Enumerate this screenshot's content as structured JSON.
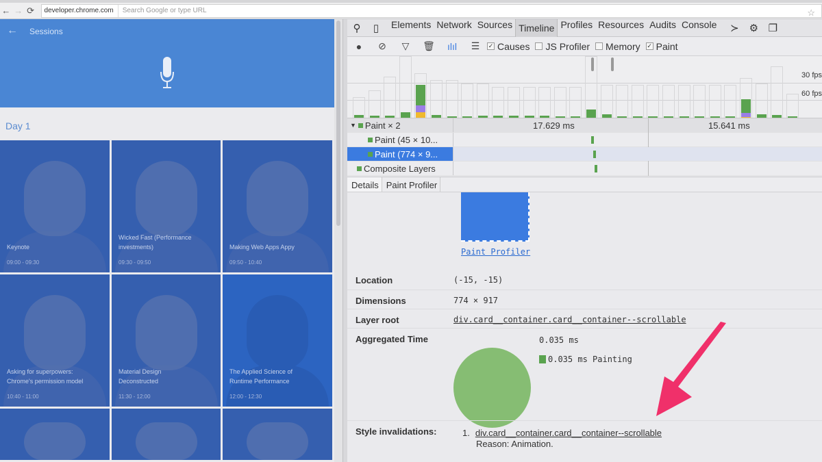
{
  "browser": {
    "host": "developer.chrome.com",
    "omnibox_placeholder": "Search Google or type URL"
  },
  "page": {
    "header_title": "Sessions",
    "day_label": "Day 1",
    "cards": [
      {
        "title": "Keynote",
        "time": "09:00 - 09:30"
      },
      {
        "title": "Wicked Fast (Performance investments)",
        "time": "09:30 - 09:50"
      },
      {
        "title": "Making Web Apps Appy",
        "time": "09:50 - 10:40"
      },
      {
        "title": "Asking for superpowers: Chrome's permission model",
        "time": "10:40 - 11:00"
      },
      {
        "title": "Material Design Deconstructed",
        "time": "11:30 - 12:00"
      },
      {
        "title": "The Applied Science of Runtime Performance",
        "time": "12:00 - 12:30"
      },
      {
        "title": "",
        "time": ""
      },
      {
        "title": "",
        "time": ""
      },
      {
        "title": "",
        "time": ""
      }
    ]
  },
  "devtools": {
    "tabs": [
      "Elements",
      "Network",
      "Sources",
      "Timeline",
      "Profiles",
      "Resources",
      "Audits",
      "Console"
    ],
    "active_tab": "Timeline",
    "checkboxes": [
      {
        "label": "Causes",
        "checked": true
      },
      {
        "label": "JS Profiler",
        "checked": false
      },
      {
        "label": "Memory",
        "checked": false
      },
      {
        "label": "Paint",
        "checked": true
      }
    ],
    "fps_30": "30 fps",
    "fps_60": "60 fps",
    "flame": {
      "rows": [
        "Paint × 2",
        "Paint (45 × 10...",
        "Paint (774 × 9...",
        "Composite Layers"
      ],
      "frame1": "17.629 ms",
      "frame2": "15.641 ms"
    },
    "detail_tabs": [
      "Details",
      "Paint Profiler"
    ],
    "details": {
      "paint_profiler_link": "Paint Profiler",
      "location_label": "Location",
      "location": "(-15, -15)",
      "dimensions_label": "Dimensions",
      "dimensions": "774 × 917",
      "layer_root_label": "Layer root",
      "layer_root": "div.card__container.card__container--scrollable",
      "aggregated_label": "Aggregated Time",
      "aggregated_total": "0.035 ms",
      "aggregated_painting": "0.035 ms Painting",
      "style_inv_label": "Style invalidations:",
      "style_inv_num": "1.",
      "style_inv_node": "div.card__container.card__container--scrollable",
      "style_inv_reason": "Reason: Animation."
    },
    "colors": {
      "painting": "#86bd73",
      "scripting": "#9b7ee6",
      "loading": "#f0b92f",
      "selection": "#3b7be0",
      "arrow": "#f0306a"
    }
  }
}
